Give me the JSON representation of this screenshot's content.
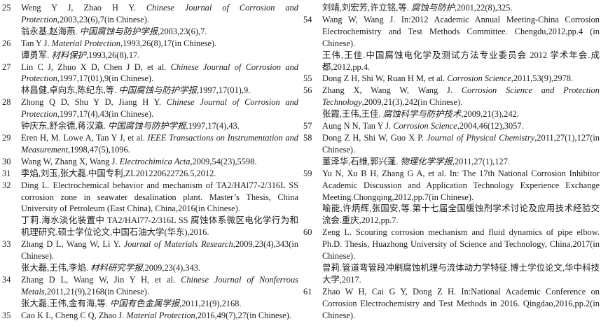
{
  "page": {
    "background": "#ffffff",
    "text_color": "#1c1c1c"
  },
  "references": {
    "left_column": [
      {
        "num": "25",
        "blocks": [
          [
            {
              "t": "Weng Y J, Zhao H Y. "
            },
            {
              "t": "Chinese Journal of Corrosion and Protection",
              "s": "i"
            },
            {
              "t": ",2003,23(6),7(in Chinese)."
            }
          ],
          [
            {
              "t": "翁永基,赵海燕. "
            },
            {
              "t": "中国腐蚀与防护学报",
              "s": "k"
            },
            {
              "t": ",2003,23(6),7."
            }
          ]
        ]
      },
      {
        "num": "26",
        "blocks": [
          [
            {
              "t": "Tan Y J. "
            },
            {
              "t": "Material Protection",
              "s": "i"
            },
            {
              "t": ",1993,26(8),17(in Chinese)."
            }
          ],
          [
            {
              "t": "谭勇军. "
            },
            {
              "t": "材料保护",
              "s": "k"
            },
            {
              "t": ",1993,26(8),17."
            }
          ]
        ]
      },
      {
        "num": "27",
        "blocks": [
          [
            {
              "t": "Lin C J, Zhuo X D, Chen J D, et al. "
            },
            {
              "t": "Chinese Journal of Corrosion and Protection",
              "s": "i"
            },
            {
              "t": ",1997,17(01),9(in Chinese)."
            }
          ],
          [
            {
              "t": "林昌健,卓向东,陈纪东,等. "
            },
            {
              "t": "中国腐蚀与防护学报",
              "s": "k"
            },
            {
              "t": ",1997,17(01),9."
            }
          ]
        ]
      },
      {
        "num": "28",
        "blocks": [
          [
            {
              "t": "Zhong Q D, Shu Y D, Jiang H Y. "
            },
            {
              "t": "Chinese Journal of Corrosion and Protection",
              "s": "i"
            },
            {
              "t": ",1997,17(4),43(in Chinese)."
            }
          ],
          [
            {
              "t": "钟庆东,舒余德,蒋汉瀛. "
            },
            {
              "t": "中国腐蚀与防护学报",
              "s": "k"
            },
            {
              "t": ",1997,17(4),43."
            }
          ]
        ]
      },
      {
        "num": "29",
        "blocks": [
          [
            {
              "t": "Eren H, M. Lowe A, Tan Y J, et al. "
            },
            {
              "t": "IEEE Transactions on Instrumentation and Measurement",
              "s": "i"
            },
            {
              "t": ",1998,47(5),1096."
            }
          ]
        ]
      },
      {
        "num": "30",
        "blocks": [
          [
            {
              "t": "Wang W, Zhang X, Wang J. "
            },
            {
              "t": "Electrochimica Acta",
              "s": "i"
            },
            {
              "t": ",2009,54(23),5598."
            }
          ]
        ]
      },
      {
        "num": "31",
        "blocks": [
          [
            {
              "t": "李焰,刘玉,张大磊.中国专利,ZL201220622726.5,2012."
            }
          ]
        ]
      },
      {
        "num": "32",
        "blocks": [
          [
            {
              "t": "Ding L. Electrochemical behavior and mechanism of TA2/HAl77-2/316L SS corrosion zone in seawater desalination plant. Master’s Thesis, China University of Petroleum (East China), China,2016(in Chinese)."
            }
          ],
          [
            {
              "t": "丁莉.海水淡化装置中 TA2/HAl77-2/316L SS 腐蚀体系微区电化学行为和机理研究.硕士学位论文,中国石油大学(华东),2016."
            }
          ]
        ]
      },
      {
        "num": "33",
        "blocks": [
          [
            {
              "t": "Zhang D L, Wang W, Li Y. "
            },
            {
              "t": "Journal of Materials Research",
              "s": "i"
            },
            {
              "t": ",2009,23(4),343(in Chinese)."
            }
          ],
          [
            {
              "t": "张大磊,王伟,李焰. "
            },
            {
              "t": "材料研究学报",
              "s": "k"
            },
            {
              "t": ",2009,23(4),343."
            }
          ]
        ]
      },
      {
        "num": "34",
        "blocks": [
          [
            {
              "t": "Zhang D L, Wang W, Jin Y H, et al. "
            },
            {
              "t": "Chinese Journal of Nonferrous Metals",
              "s": "i"
            },
            {
              "t": ",2011,21(9),2168(in Chinese)."
            }
          ],
          [
            {
              "t": "张大磊,王伟,金有海,等. "
            },
            {
              "t": "中国有色金属学报",
              "s": "k"
            },
            {
              "t": ",2011,21(9),2168."
            }
          ]
        ]
      },
      {
        "num": "35",
        "blocks": [
          [
            {
              "t": "Cao K L, Cheng C Q, Zhao J. "
            },
            {
              "t": "Material Protection",
              "s": "i"
            },
            {
              "t": ",2016,49(7),27(in Chinese)."
            }
          ]
        ]
      }
    ],
    "right_column": [
      {
        "num": "",
        "blocks": [
          [
            {
              "t": "刘靖,刘宏芳,许立铭,等. "
            },
            {
              "t": "腐蚀与防护",
              "s": "k"
            },
            {
              "t": ",2001,22(8),325."
            }
          ]
        ]
      },
      {
        "num": "54",
        "blocks": [
          [
            {
              "t": "Wang W, Wang J. In:2012 Academic Annual Meeting-China Corrosion Electrochemistry and Test Methods Committee. Chengdu,2012,pp.4 (in Chinese)."
            }
          ],
          [
            {
              "t": "王伟,王佳.中国腐蚀电化学及测试方法专业委员会 2012 学术年会.成都,2012,pp.4."
            }
          ]
        ]
      },
      {
        "num": "55",
        "blocks": [
          [
            {
              "t": "Dong Z H, Shi W, Ruan H M, et al. "
            },
            {
              "t": "Corrosion Science",
              "s": "i"
            },
            {
              "t": ",2011,53(9),2978."
            }
          ]
        ]
      },
      {
        "num": "56",
        "blocks": [
          [
            {
              "t": "Zhang X, Wang W, Wang J. "
            },
            {
              "t": "Corrosion Science and Protection Technology",
              "s": "i"
            },
            {
              "t": ",2009,21(3),242(in Chinese)."
            }
          ],
          [
            {
              "t": "张霞,王伟,王佳. "
            },
            {
              "t": "腐蚀科学与防护技术",
              "s": "k"
            },
            {
              "t": ",2009,21(3),242."
            }
          ]
        ]
      },
      {
        "num": "57",
        "blocks": [
          [
            {
              "t": "Aung N N, Tan Y J. "
            },
            {
              "t": "Corrosion Science",
              "s": "i"
            },
            {
              "t": ",2004,46(12),3057."
            }
          ]
        ]
      },
      {
        "num": "58",
        "blocks": [
          [
            {
              "t": "Dong Z H, Shi W, Guo X P. "
            },
            {
              "t": "Journal of Physical Chemistry",
              "s": "i"
            },
            {
              "t": ",2011,27(1),127(in Chinese)."
            }
          ],
          [
            {
              "t": "董泽华,石维,郭兴蓬. "
            },
            {
              "t": "物理化学学报",
              "s": "k"
            },
            {
              "t": ",2011,27(1),127."
            }
          ]
        ]
      },
      {
        "num": "59",
        "blocks": [
          [
            {
              "t": "Yu N, Xu B H, Zhang G A, et al. In: The 17th National Corrosion Inhibitor Academic Discussion and Application Technology Experience Exchange Meeting.Chongqing,2012,pp.7(in Chinese)."
            }
          ],
          [
            {
              "t": "喻能,许炳辉,张国安,等.第十七届全国缓蚀剂学术讨论及应用技术经验交流会.重庆,2012,pp.7."
            }
          ]
        ]
      },
      {
        "num": "60",
        "blocks": [
          [
            {
              "t": "Zeng L. Scouring corrosion mechanism and fluid dynamics of pipe elbow. Ph.D. Thesis, Huazhong University of Science and Technology, China,2017(in Chinese)."
            }
          ],
          [
            {
              "t": "曾莉.管道弯管段冲刷腐蚀机理与流体动力学特征.博士学位论文,华中科技大学,2017."
            }
          ]
        ]
      },
      {
        "num": "61",
        "blocks": [
          [
            {
              "t": "Zhao W H, Cai G Y, Dong Z H. In:National Academic Conference on Corrosion Electrochemistry and Test Methods in 2016. Qingdao,2016,pp.2(in Chinese)."
            }
          ]
        ]
      }
    ]
  }
}
